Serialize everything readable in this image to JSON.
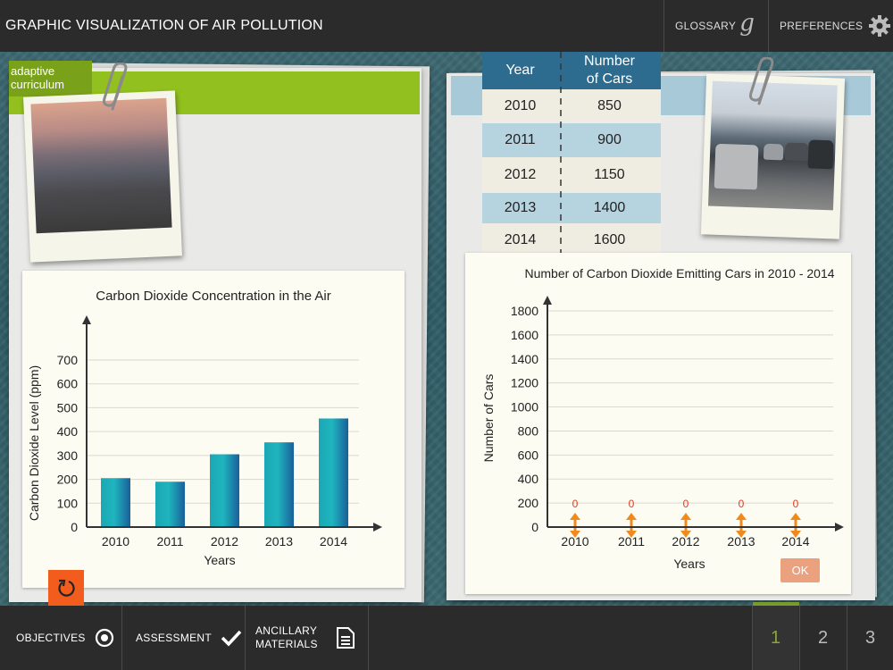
{
  "header": {
    "title": "GRAPHIC VISUALIZATION OF AIR POLLUTION",
    "glossary_label": "GLOSSARY",
    "glossary_icon": "g",
    "preferences_label": "PREFERENCES"
  },
  "logo": {
    "line1": "adaptive",
    "line2": "curriculum"
  },
  "table": {
    "col_year": "Year",
    "col_cars_line1": "Number",
    "col_cars_line2": "of Cars",
    "rows": [
      {
        "year": "2010",
        "cars": "850"
      },
      {
        "year": "2011",
        "cars": "900"
      },
      {
        "year": "2012",
        "cars": "1150"
      },
      {
        "year": "2013",
        "cars": "1400"
      },
      {
        "year": "2014",
        "cars": "1600"
      }
    ]
  },
  "ok_label": "OK",
  "footer": {
    "objectives": "OBJECTIVES",
    "assessment": "ASSESSMENT",
    "ancillary_line1": "ANCILLARY",
    "ancillary_line2": "MATERIALS",
    "pages": [
      "1",
      "2",
      "3"
    ],
    "active_page": "1"
  },
  "colors": {
    "accent_green": "#92c01e",
    "reset_orange": "#f25c1c",
    "arrow_orange": "#f08a1c",
    "bar_teal": "#1aa7b4",
    "bar_blue": "#1a5f9a"
  },
  "chart_data": [
    {
      "type": "bar",
      "title": "Carbon Dioxide Concentration in the Air",
      "xlabel": "Years",
      "ylabel": "Carbon Dioxide Level (ppm)",
      "categories": [
        "2010",
        "2011",
        "2012",
        "2013",
        "2014"
      ],
      "values": [
        205,
        190,
        305,
        355,
        455
      ],
      "ylim": [
        0,
        700
      ],
      "yticks": [
        0,
        100,
        200,
        300,
        400,
        500,
        600,
        700
      ],
      "grid": true
    },
    {
      "type": "bar",
      "title": "Number of Carbon Dioxide Emitting Cars in 2010 - 2014",
      "xlabel": "Years",
      "ylabel": "Number of Cars",
      "categories": [
        "2010",
        "2011",
        "2012",
        "2013",
        "2014"
      ],
      "values": [
        0,
        0,
        0,
        0,
        0
      ],
      "value_labels": [
        "0",
        "0",
        "0",
        "0",
        "0"
      ],
      "ylim": [
        0,
        1800
      ],
      "yticks": [
        0,
        200,
        400,
        600,
        800,
        1000,
        1200,
        1400,
        1600,
        1800
      ],
      "grid": true
    }
  ]
}
